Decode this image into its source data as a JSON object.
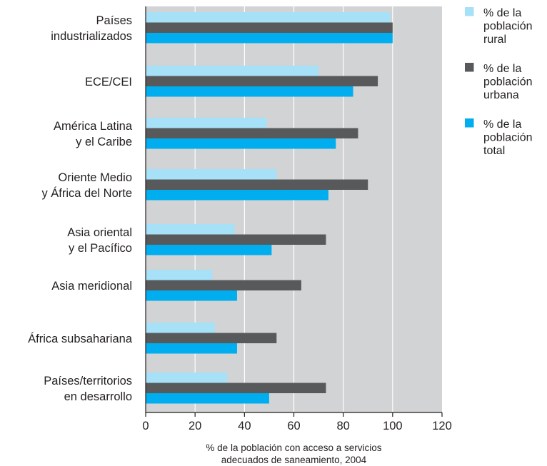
{
  "chart_data": {
    "type": "bar",
    "orientation": "horizontal",
    "categories": [
      [
        "Países",
        "industrializados"
      ],
      [
        "ECE/CEI"
      ],
      [
        "América Latina",
        "y el Caribe"
      ],
      [
        "Oriente Medio",
        "y África del Norte"
      ],
      [
        "Asia oriental",
        "y el Pacífico"
      ],
      [
        "Asia meridional"
      ],
      [
        "África subsahariana"
      ],
      [
        "Países/territorios",
        "en desarrollo"
      ]
    ],
    "series": [
      {
        "name": [
          "% de la",
          "población",
          "rural"
        ],
        "color": "#a6e1f8",
        "values": [
          99,
          70,
          49,
          53,
          36,
          27,
          28,
          33
        ]
      },
      {
        "name": [
          "% de la",
          "población",
          "urbana"
        ],
        "color": "#58595b",
        "values": [
          100,
          94,
          86,
          90,
          73,
          63,
          53,
          73
        ]
      },
      {
        "name": [
          "% de la",
          "población",
          "total"
        ],
        "color": "#00aeef",
        "values": [
          100,
          84,
          77,
          74,
          51,
          37,
          37,
          50
        ]
      }
    ],
    "xlim": [
      0,
      120
    ],
    "xticks": [
      0,
      20,
      40,
      60,
      80,
      100,
      120
    ],
    "xlabel": [
      "% de la población con acceso a servicios",
      "adecuados de saneamiento, 2004"
    ],
    "grid": true,
    "background": "#d1d3d4",
    "legend_position": "top-right"
  }
}
